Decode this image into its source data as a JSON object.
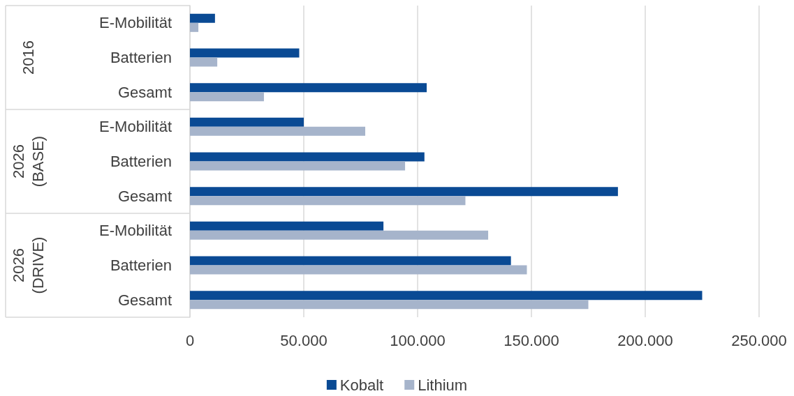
{
  "chart_data": {
    "type": "bar",
    "orientation": "horizontal",
    "categories": [
      "E-Mobilität",
      "Batterien",
      "Gesamt",
      "E-Mobilität",
      "Batterien",
      "Gesamt",
      "E-Mobilität",
      "Batterien",
      "Gesamt"
    ],
    "series": [
      {
        "name": "Kobalt",
        "color": "#0a4a94",
        "values": [
          11000,
          48000,
          104000,
          50000,
          103000,
          188000,
          85000,
          141000,
          225000
        ]
      },
      {
        "name": "Lithium",
        "color": "#a6b4cb",
        "values": [
          3700,
          12000,
          32500,
          77000,
          94500,
          121000,
          131000,
          148000,
          175000
        ]
      }
    ],
    "xlim": [
      0,
      250000
    ],
    "xticks": [
      {
        "value": 0,
        "label": "0"
      },
      {
        "value": 50000,
        "label": "50.000"
      },
      {
        "value": 100000,
        "label": "100.000"
      },
      {
        "value": 150000,
        "label": "150.000"
      },
      {
        "value": 200000,
        "label": "200.000"
      },
      {
        "value": 250000,
        "label": "250.000"
      }
    ],
    "annotations": [
      "2016",
      "2026\n(BASE)",
      "2026\n(DRIVE)"
    ],
    "grid": "x",
    "legend": "bottom"
  }
}
